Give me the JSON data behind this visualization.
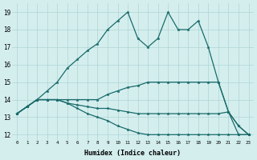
{
  "xlabel": "Humidex (Indice chaleur)",
  "bg_color": "#d4eeee",
  "grid_color": "#b0d4d4",
  "line_color": "#1a6b6b",
  "xlim": [
    -0.5,
    23.5
  ],
  "ylim": [
    11.7,
    19.5
  ],
  "yticks": [
    12,
    13,
    14,
    15,
    16,
    17,
    18,
    19
  ],
  "xticks": [
    0,
    1,
    2,
    3,
    4,
    5,
    6,
    7,
    8,
    9,
    10,
    11,
    12,
    13,
    14,
    15,
    16,
    17,
    18,
    19,
    20,
    21,
    22,
    23
  ],
  "series": [
    [
      13.2,
      13.6,
      14.0,
      14.5,
      15.0,
      15.8,
      16.3,
      16.8,
      17.2,
      18.0,
      18.5,
      19.0,
      17.5,
      17.0,
      17.5,
      19.0,
      18.0,
      18.0,
      18.5,
      17.0,
      15.0,
      13.3,
      12.0,
      12.0
    ],
    [
      13.2,
      13.6,
      14.0,
      14.0,
      14.0,
      14.0,
      14.0,
      14.0,
      14.0,
      14.3,
      14.5,
      14.7,
      14.8,
      15.0,
      15.0,
      15.0,
      15.0,
      15.0,
      15.0,
      15.0,
      15.0,
      13.3,
      12.5,
      12.0
    ],
    [
      13.2,
      13.6,
      14.0,
      14.0,
      14.0,
      13.8,
      13.7,
      13.6,
      13.5,
      13.5,
      13.4,
      13.3,
      13.2,
      13.2,
      13.2,
      13.2,
      13.2,
      13.2,
      13.2,
      13.2,
      13.2,
      13.3,
      12.5,
      12.0
    ],
    [
      13.2,
      13.6,
      14.0,
      14.0,
      14.0,
      13.8,
      13.5,
      13.2,
      13.0,
      12.8,
      12.5,
      12.3,
      12.1,
      12.0,
      12.0,
      12.0,
      12.0,
      12.0,
      12.0,
      12.0,
      12.0,
      12.0,
      12.0,
      12.0
    ]
  ]
}
